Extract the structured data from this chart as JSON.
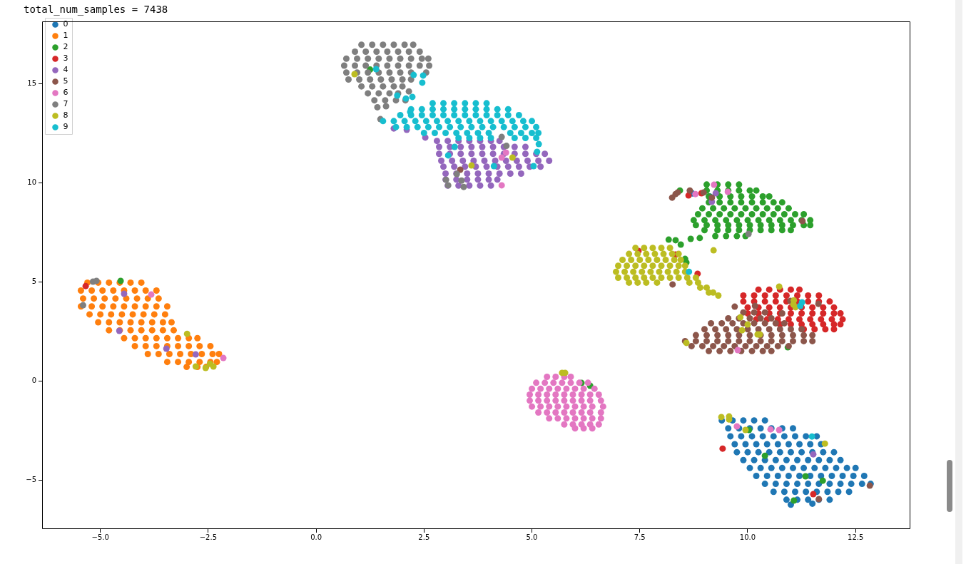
{
  "chart_data": {
    "type": "scatter",
    "title": "total_num_samples = 7438",
    "xlim": [
      -6.35,
      13.77
    ],
    "ylim": [
      -7.48,
      18.13
    ],
    "xticks": [
      {
        "value": -5,
        "label": "−5.0"
      },
      {
        "value": -2.5,
        "label": "−2.5"
      },
      {
        "value": 0,
        "label": "0.0"
      },
      2.5,
      {
        "value": 5,
        "label": "5.0"
      },
      7.5,
      {
        "value": 10,
        "label": "10.0"
      },
      12.5
    ],
    "yticks": [
      {
        "value": -5,
        "label": "−5"
      },
      0,
      5,
      10,
      15
    ],
    "grid": false,
    "legend": "top left",
    "marker": "circle",
    "series": [
      {
        "name": "0",
        "color": "#1f77b4",
        "x": [
          9.4,
          9.65,
          9.9,
          10.15,
          10.4,
          9.55,
          9.8,
          10.05,
          10.3,
          10.55,
          10.8,
          11.05,
          9.6,
          9.85,
          10.1,
          10.35,
          10.6,
          10.85,
          11.1,
          11.35,
          11.6,
          9.7,
          9.95,
          10.2,
          10.45,
          10.7,
          10.95,
          11.2,
          11.45,
          11.7,
          9.75,
          10,
          10.25,
          10.5,
          10.75,
          11,
          11.25,
          11.5,
          11.75,
          12,
          9.9,
          10.15,
          10.4,
          10.65,
          10.9,
          11.15,
          11.4,
          11.65,
          11.9,
          12.15,
          10.05,
          10.3,
          10.55,
          10.8,
          11.05,
          11.3,
          11.55,
          11.8,
          12.05,
          12.3,
          12.5,
          10.2,
          10.45,
          10.7,
          10.95,
          11.2,
          11.45,
          11.7,
          11.95,
          12.2,
          12.45,
          12.7,
          10.4,
          10.65,
          10.9,
          11.15,
          11.4,
          11.65,
          11.9,
          12.15,
          12.4,
          12.65,
          12.85,
          10.6,
          10.85,
          11.1,
          11.35,
          11.6,
          11.85,
          12.1,
          12.35,
          10.9,
          11.15,
          11.4,
          11.65,
          11.9,
          11,
          11.5,
          8.72,
          9.12
        ],
        "values": [
          -2,
          -2,
          -2,
          -2,
          -2,
          -2.4,
          -2.4,
          -2.4,
          -2.4,
          -2.4,
          -2.4,
          -2.4,
          -2.8,
          -2.8,
          -2.8,
          -2.8,
          -2.8,
          -2.8,
          -2.8,
          -2.8,
          -2.8,
          -3.2,
          -3.2,
          -3.2,
          -3.2,
          -3.2,
          -3.2,
          -3.2,
          -3.2,
          -3.2,
          -3.6,
          -3.6,
          -3.6,
          -3.6,
          -3.6,
          -3.6,
          -3.6,
          -3.6,
          -3.6,
          -3.6,
          -4,
          -4,
          -4,
          -4,
          -4,
          -4,
          -4,
          -4,
          -4,
          -4,
          -4.4,
          -4.4,
          -4.4,
          -4.4,
          -4.4,
          -4.4,
          -4.4,
          -4.4,
          -4.4,
          -4.4,
          -4.4,
          -4.8,
          -4.8,
          -4.8,
          -4.8,
          -4.8,
          -4.8,
          -4.8,
          -4.8,
          -4.8,
          -4.8,
          -4.8,
          -5.2,
          -5.2,
          -5.2,
          -5.2,
          -5.2,
          -5.2,
          -5.2,
          -5.2,
          -5.2,
          -5.2,
          -5.2,
          -5.6,
          -5.6,
          -5.6,
          -5.6,
          -5.6,
          -5.6,
          -5.6,
          -5.6,
          -6,
          -6,
          -6,
          -6,
          -6,
          -6.25,
          -6.2,
          9.45,
          9.3
        ]
      },
      {
        "name": "1",
        "color": "#ff7f0e",
        "x": [
          -5.3,
          -5.05,
          -4.8,
          -4.55,
          -4.3,
          -4.05,
          -5.45,
          -5.2,
          -4.95,
          -4.7,
          -4.45,
          -4.2,
          -3.95,
          -3.7,
          -5.4,
          -5.15,
          -4.9,
          -4.65,
          -4.4,
          -4.15,
          -3.9,
          -3.65,
          -5.45,
          -5.2,
          -4.95,
          -4.7,
          -4.45,
          -4.2,
          -3.95,
          -3.7,
          -3.45,
          -5.25,
          -5,
          -4.75,
          -4.5,
          -4.25,
          -4,
          -3.75,
          -3.5,
          -5.05,
          -4.8,
          -4.55,
          -4.3,
          -4.05,
          -3.8,
          -3.55,
          -3.35,
          -4.8,
          -4.55,
          -4.3,
          -4.05,
          -3.8,
          -3.55,
          -3.3,
          -4.45,
          -4.2,
          -3.95,
          -3.7,
          -3.45,
          -3.2,
          -2.95,
          -2.75,
          -4.2,
          -3.95,
          -3.7,
          -3.45,
          -3.2,
          -2.95,
          -2.7,
          -2.45,
          -3.9,
          -3.65,
          -3.4,
          -3.15,
          -2.9,
          -2.65,
          -2.4,
          -2.25,
          -3.45,
          -3.2,
          -2.95,
          -2.7,
          -2.45,
          -2.3,
          -3,
          -2.75,
          -2.55
        ],
        "values": [
          4.95,
          4.95,
          4.95,
          4.95,
          4.95,
          4.95,
          4.55,
          4.55,
          4.55,
          4.55,
          4.55,
          4.55,
          4.55,
          4.55,
          4.15,
          4.15,
          4.15,
          4.15,
          4.15,
          4.15,
          4.15,
          4.15,
          3.75,
          3.75,
          3.75,
          3.75,
          3.75,
          3.75,
          3.75,
          3.75,
          3.75,
          3.35,
          3.35,
          3.35,
          3.35,
          3.35,
          3.35,
          3.35,
          3.35,
          2.95,
          2.95,
          2.95,
          2.95,
          2.95,
          2.95,
          2.95,
          2.95,
          2.55,
          2.55,
          2.55,
          2.55,
          2.55,
          2.55,
          2.55,
          2.15,
          2.15,
          2.15,
          2.15,
          2.15,
          2.15,
          2.15,
          2.15,
          1.75,
          1.75,
          1.75,
          1.75,
          1.75,
          1.75,
          1.75,
          1.75,
          1.35,
          1.35,
          1.35,
          1.35,
          1.35,
          1.35,
          1.35,
          1.35,
          0.95,
          0.95,
          0.95,
          0.95,
          0.95,
          0.95,
          0.7,
          0.7,
          0.7
        ]
      },
      {
        "name": "2",
        "color": "#2ca02c",
        "x": [
          9.05,
          9.3,
          9.55,
          9.8,
          9.05,
          9.3,
          9.55,
          9.8,
          10.05,
          10.2,
          9.1,
          9.35,
          9.6,
          9.85,
          10.1,
          10.35,
          10.5,
          9.1,
          9.35,
          9.6,
          9.85,
          10.1,
          10.35,
          10.6,
          10.8,
          8.95,
          9.2,
          9.45,
          9.7,
          9.95,
          10.2,
          10.45,
          10.7,
          10.95,
          8.85,
          9.1,
          9.35,
          9.6,
          9.85,
          10.1,
          10.35,
          10.6,
          10.85,
          11.1,
          11.3,
          8.75,
          9,
          9.25,
          9.5,
          9.75,
          10,
          10.25,
          10.5,
          10.75,
          11,
          11.25,
          11.45,
          8.8,
          9.05,
          9.3,
          9.55,
          9.8,
          10.05,
          10.3,
          10.55,
          10.8,
          11.05,
          11.3,
          11.45,
          9,
          9.3,
          9.55,
          9.8,
          10.05,
          10.3,
          10.55,
          10.8,
          11,
          9.25,
          9.5,
          9.75,
          9.95,
          8.17,
          8.33,
          8.45,
          8.68,
          8.89,
          8.43,
          1.25,
          -4.53,
          8.55,
          8.58,
          6.15,
          6.35,
          10.93,
          10.03,
          10.4,
          11.34,
          11.74,
          11.07
        ],
        "values": [
          9.9,
          9.9,
          9.9,
          9.9,
          9.6,
          9.6,
          9.6,
          9.6,
          9.6,
          9.6,
          9.3,
          9.3,
          9.3,
          9.3,
          9.3,
          9.3,
          9.3,
          9,
          9,
          9,
          9,
          9,
          9,
          9,
          9,
          8.7,
          8.7,
          8.7,
          8.7,
          8.7,
          8.7,
          8.7,
          8.7,
          8.7,
          8.4,
          8.4,
          8.4,
          8.4,
          8.4,
          8.4,
          8.4,
          8.4,
          8.4,
          8.4,
          8.4,
          8.1,
          8.1,
          8.1,
          8.1,
          8.1,
          8.1,
          8.1,
          8.1,
          8.1,
          8.1,
          8.1,
          8.1,
          7.85,
          7.85,
          7.85,
          7.85,
          7.85,
          7.85,
          7.85,
          7.85,
          7.85,
          7.85,
          7.85,
          7.85,
          7.6,
          7.6,
          7.6,
          7.6,
          7.6,
          7.6,
          7.6,
          7.6,
          7.6,
          7.3,
          7.3,
          7.3,
          7.3,
          7.12,
          7.09,
          6.87,
          7.16,
          7.2,
          9.6,
          15.7,
          5.04,
          6.15,
          5.97,
          -0.11,
          -0.25,
          1.69,
          -2.48,
          -3.78,
          -4.82,
          -5.04,
          -6.04
        ]
      },
      {
        "name": "3",
        "color": "#d62728",
        "x": [
          10.25,
          10.5,
          10.75,
          11,
          11.2,
          9.9,
          10.15,
          10.4,
          10.65,
          10.9,
          11.15,
          11.4,
          11.65,
          9.9,
          10.15,
          10.4,
          10.65,
          10.9,
          11.15,
          11.4,
          11.65,
          11.9,
          10,
          10.25,
          10.5,
          10.75,
          11,
          11.25,
          11.5,
          11.75,
          12,
          10,
          10.25,
          10.5,
          10.75,
          11,
          11.25,
          11.5,
          11.75,
          12,
          12.15,
          10.2,
          10.45,
          10.7,
          10.95,
          11.2,
          11.45,
          11.7,
          11.95,
          12.2,
          10.75,
          11,
          11.25,
          11.5,
          11.75,
          12,
          12.15,
          11.3,
          11.55,
          11.8,
          12,
          -5.34,
          8.63,
          8.93,
          7.47,
          8.33,
          8.84,
          9.42,
          11.52
        ],
        "values": [
          4.6,
          4.6,
          4.6,
          4.6,
          4.6,
          4.3,
          4.3,
          4.3,
          4.3,
          4.3,
          4.3,
          4.3,
          4.3,
          4,
          4,
          4,
          4,
          4,
          4,
          4,
          4,
          4,
          3.7,
          3.7,
          3.7,
          3.7,
          3.7,
          3.7,
          3.7,
          3.7,
          3.7,
          3.4,
          3.4,
          3.4,
          3.4,
          3.4,
          3.4,
          3.4,
          3.4,
          3.4,
          3.4,
          3.1,
          3.1,
          3.1,
          3.1,
          3.1,
          3.1,
          3.1,
          3.1,
          3.1,
          2.85,
          2.85,
          2.85,
          2.85,
          2.85,
          2.85,
          2.85,
          2.6,
          2.6,
          2.6,
          2.6,
          4.78,
          9.35,
          9.46,
          6.55,
          6.37,
          5.4,
          -3.42,
          -5.72
        ]
      },
      {
        "name": "4",
        "color": "#9467bd",
        "x": [
          2.8,
          3.05,
          3.3,
          3.55,
          3.8,
          4.05,
          4.25,
          2.85,
          3.1,
          3.35,
          3.6,
          3.85,
          4.1,
          4.35,
          4.6,
          4.85,
          2.85,
          3.1,
          3.35,
          3.6,
          3.85,
          4.1,
          4.35,
          4.6,
          4.85,
          5.1,
          5.3,
          2.9,
          3.15,
          3.4,
          3.65,
          3.9,
          4.15,
          4.4,
          4.65,
          4.9,
          5.15,
          5.4,
          2.95,
          3.2,
          3.45,
          3.7,
          3.95,
          4.2,
          4.45,
          4.7,
          4.95,
          5.2,
          3,
          3.25,
          3.5,
          3.75,
          4,
          4.25,
          4.5,
          4.75,
          3,
          3.25,
          3.5,
          3.75,
          4,
          4.2,
          3.05,
          3.3,
          3.55,
          3.8,
          4.05,
          1.8,
          2.1,
          2.53,
          -4.45,
          -4.56,
          -3.47,
          -2.79,
          9.26,
          9.17,
          11.52
        ],
        "values": [
          12.1,
          12.1,
          12.1,
          12.1,
          12.1,
          12.1,
          12.1,
          11.8,
          11.8,
          11.8,
          11.8,
          11.8,
          11.8,
          11.8,
          11.8,
          11.8,
          11.45,
          11.45,
          11.45,
          11.45,
          11.45,
          11.45,
          11.45,
          11.45,
          11.45,
          11.45,
          11.45,
          11.1,
          11.1,
          11.1,
          11.1,
          11.1,
          11.1,
          11.1,
          11.1,
          11.1,
          11.1,
          11.1,
          10.8,
          10.8,
          10.8,
          10.8,
          10.8,
          10.8,
          10.8,
          10.8,
          10.8,
          10.8,
          10.45,
          10.45,
          10.45,
          10.45,
          10.45,
          10.45,
          10.45,
          10.45,
          10.15,
          10.15,
          10.15,
          10.15,
          10.15,
          10.15,
          9.85,
          9.85,
          9.85,
          9.85,
          9.85,
          12.73,
          12.66,
          12.27,
          4.39,
          2.52,
          1.62,
          1.33,
          9.46,
          9.03,
          -3.71
        ]
      },
      {
        "name": "5",
        "color": "#8c564b",
        "x": [
          9.9,
          10.15,
          10.4,
          9.55,
          9.8,
          10.05,
          10.3,
          10.55,
          9.15,
          9.4,
          9.65,
          9.9,
          10.15,
          10.4,
          10.65,
          10.85,
          9,
          9.25,
          9.5,
          9.75,
          10,
          10.25,
          10.5,
          10.75,
          11,
          11.25,
          8.8,
          9.05,
          9.3,
          9.55,
          9.8,
          10.05,
          10.3,
          10.55,
          10.8,
          11.05,
          11.3,
          11.5,
          8.55,
          8.8,
          9.05,
          9.3,
          9.55,
          9.8,
          10.05,
          10.3,
          10.55,
          10.8,
          11.05,
          11.3,
          11.5,
          8.7,
          8.95,
          9.2,
          9.45,
          9.7,
          9.95,
          10.2,
          10.45,
          10.7,
          10.95,
          9.1,
          9.35,
          9.6,
          9.85,
          10.1,
          10.35,
          10.55,
          9.7,
          10.17,
          10.99,
          11.64,
          10.8,
          8.25,
          8.33,
          8.38,
          8.66,
          8.98,
          9.17,
          11.27,
          8.26,
          3.34,
          11.65,
          12.83
        ],
        "values": [
          3.45,
          3.45,
          3.45,
          3.15,
          3.15,
          3.15,
          3.15,
          3.15,
          2.9,
          2.9,
          2.9,
          2.9,
          2.9,
          2.9,
          2.9,
          2.9,
          2.6,
          2.6,
          2.6,
          2.6,
          2.6,
          2.6,
          2.6,
          2.6,
          2.6,
          2.6,
          2.3,
          2.3,
          2.3,
          2.3,
          2.3,
          2.3,
          2.3,
          2.3,
          2.3,
          2.3,
          2.3,
          2.3,
          2,
          2,
          2,
          2,
          2,
          2,
          2,
          2,
          2,
          2,
          2,
          2,
          2,
          1.75,
          1.75,
          1.75,
          1.75,
          1.75,
          1.75,
          1.75,
          1.75,
          1.75,
          1.75,
          1.5,
          1.5,
          1.5,
          1.5,
          1.5,
          1.5,
          1.5,
          3.74,
          3.78,
          4.03,
          3.88,
          3.4,
          9.24,
          9.42,
          9.5,
          9.6,
          9.5,
          9.24,
          8.06,
          4.86,
          10.65,
          -5.97,
          -5.29
        ]
      },
      {
        "name": "6",
        "color": "#e377c2",
        "x": [
          5.35,
          5.55,
          5.75,
          5.9,
          5.1,
          5.3,
          5.5,
          5.7,
          5.9,
          6.1,
          6.3,
          5,
          5.2,
          5.4,
          5.6,
          5.8,
          6,
          6.2,
          6.45,
          4.95,
          5.15,
          5.35,
          5.55,
          5.75,
          5.95,
          6.15,
          6.35,
          6.55,
          4.95,
          5.15,
          5.35,
          5.55,
          5.75,
          5.95,
          6.15,
          6.35,
          6.6,
          5,
          5.2,
          5.4,
          5.6,
          5.8,
          6,
          6.2,
          6.4,
          6.65,
          5.15,
          5.35,
          5.55,
          5.75,
          5.95,
          6.15,
          6.35,
          6.6,
          5.4,
          5.6,
          5.8,
          6,
          6.2,
          6.4,
          6.6,
          5.75,
          5.95,
          6.15,
          6.35,
          6.55,
          6,
          6.2,
          6.4,
          -3.82,
          -2.15,
          4.4,
          4.3,
          4.3,
          8.79,
          9.22,
          9.54,
          9.77,
          9.75,
          10.53,
          10.73
        ],
        "values": [
          0.2,
          0.2,
          0.2,
          0.2,
          -0.1,
          -0.1,
          -0.1,
          -0.1,
          -0.1,
          -0.1,
          -0.1,
          -0.4,
          -0.4,
          -0.4,
          -0.4,
          -0.4,
          -0.4,
          -0.4,
          -0.4,
          -0.7,
          -0.7,
          -0.7,
          -0.7,
          -0.7,
          -0.7,
          -0.7,
          -0.7,
          -0.7,
          -1,
          -1,
          -1,
          -1,
          -1,
          -1,
          -1,
          -1,
          -1,
          -1.3,
          -1.3,
          -1.3,
          -1.3,
          -1.3,
          -1.3,
          -1.3,
          -1.3,
          -1.3,
          -1.6,
          -1.6,
          -1.6,
          -1.6,
          -1.6,
          -1.6,
          -1.6,
          -1.6,
          -1.9,
          -1.9,
          -1.9,
          -1.9,
          -1.9,
          -1.9,
          -1.9,
          -2.2,
          -2.2,
          -2.2,
          -2.2,
          -2.2,
          -2.4,
          -2.4,
          -2.4,
          4.35,
          1.15,
          11.51,
          11.26,
          9.86,
          9.42,
          9.89,
          9.53,
          1.55,
          -2.3,
          -2.45,
          -2.48
        ]
      },
      {
        "name": "7",
        "color": "#7f7f7f",
        "x": [
          1.05,
          1.3,
          1.55,
          1.8,
          2.05,
          2.25,
          0.9,
          1.15,
          1.4,
          1.65,
          1.9,
          2.15,
          2.4,
          0.7,
          0.95,
          1.2,
          1.45,
          1.7,
          1.95,
          2.2,
          2.45,
          2.6,
          0.65,
          0.9,
          1.15,
          1.4,
          1.65,
          1.9,
          2.15,
          2.4,
          2.62,
          0.7,
          0.95,
          1.2,
          1.45,
          1.7,
          1.95,
          2.2,
          2.55,
          0.75,
          1,
          1.25,
          1.5,
          1.75,
          2,
          2.2,
          1.05,
          1.3,
          1.55,
          1.8,
          2,
          1.2,
          1.45,
          1.7,
          1.9,
          1.35,
          1.6,
          1.85,
          2.07,
          1.42,
          1.62,
          2.15,
          1.49,
          4.3,
          4.41,
          3.26,
          3.37,
          3.01,
          3.06,
          3.42,
          -5.17,
          -5.09,
          -5.4,
          10.02
        ],
        "values": [
          16.95,
          16.95,
          16.95,
          16.95,
          16.95,
          16.95,
          16.6,
          16.6,
          16.6,
          16.6,
          16.6,
          16.6,
          16.6,
          16.25,
          16.25,
          16.25,
          16.25,
          16.25,
          16.25,
          16.25,
          16.25,
          16.25,
          15.9,
          15.9,
          15.9,
          15.9,
          15.9,
          15.9,
          15.9,
          15.9,
          15.9,
          15.55,
          15.55,
          15.55,
          15.55,
          15.55,
          15.55,
          15.55,
          15.55,
          15.2,
          15.2,
          15.2,
          15.2,
          15.2,
          15.2,
          15.2,
          14.85,
          14.85,
          14.85,
          14.85,
          14.85,
          14.5,
          14.5,
          14.5,
          14.5,
          14.15,
          14.15,
          14.15,
          14.15,
          13.8,
          13.85,
          14.6,
          13.2,
          12.3,
          11.85,
          10.43,
          10.1,
          10.14,
          9.86,
          9.78,
          5,
          5.04,
          3.81,
          7.41
        ]
      },
      {
        "name": "8",
        "color": "#bcbd22",
        "x": [
          7.4,
          7.6,
          7.8,
          8,
          8.2,
          7.25,
          7.45,
          7.65,
          7.85,
          8.05,
          8.25,
          8.4,
          7.1,
          7.3,
          7.5,
          7.7,
          7.9,
          8.1,
          8.3,
          8.45,
          7,
          7.2,
          7.4,
          7.6,
          7.8,
          8,
          8.2,
          8.4,
          8.55,
          6.95,
          7.15,
          7.35,
          7.55,
          7.75,
          7.95,
          8.15,
          8.35,
          8.55,
          7,
          7.2,
          7.4,
          7.6,
          7.8,
          8,
          8.2,
          8.4,
          8.6,
          8.8,
          7.25,
          7.45,
          7.65,
          7.9,
          8.65,
          8.85,
          8.9,
          9.05,
          9.1,
          9.2,
          9.32,
          9.21,
          5.7,
          5.77,
          0.89,
          3.6,
          4.55,
          -2.99,
          -2.79,
          -2.56,
          -2.46,
          -2.38,
          10.73,
          11.07,
          11.11,
          11.06,
          9.83,
          10,
          9.87,
          10.23,
          10.28,
          8.58,
          9.39,
          9.57,
          9.57,
          9.95,
          11.79
        ],
        "values": [
          6.7,
          6.7,
          6.7,
          6.7,
          6.7,
          6.4,
          6.4,
          6.4,
          6.4,
          6.4,
          6.4,
          6.4,
          6.1,
          6.1,
          6.1,
          6.1,
          6.1,
          6.1,
          6.1,
          6.1,
          5.8,
          5.8,
          5.8,
          5.8,
          5.8,
          5.8,
          5.8,
          5.8,
          5.8,
          5.5,
          5.5,
          5.5,
          5.5,
          5.5,
          5.5,
          5.5,
          5.5,
          5.5,
          5.2,
          5.2,
          5.2,
          5.2,
          5.2,
          5.2,
          5.2,
          5.2,
          5.2,
          5.2,
          4.95,
          4.95,
          4.95,
          4.95,
          4.95,
          4.95,
          4.7,
          4.7,
          4.45,
          4.45,
          4.3,
          6.58,
          0.4,
          0.4,
          15.47,
          10.86,
          11.26,
          2.37,
          0.72,
          0.65,
          0.86,
          0.72,
          4.75,
          4.06,
          3.71,
          3.85,
          3.2,
          2.84,
          2.55,
          2.34,
          2.34,
          1.91,
          -1.83,
          -1.8,
          -1.95,
          -2.48,
          -3.17
        ]
      },
      {
        "name": "9",
        "color": "#17becf",
        "x": [
          2.7,
          2.95,
          3.2,
          3.45,
          3.7,
          3.95,
          2.2,
          2.45,
          2.7,
          2.95,
          3.2,
          3.45,
          3.7,
          3.95,
          4.2,
          4.45,
          1.95,
          2.2,
          2.45,
          2.7,
          2.95,
          3.2,
          3.45,
          3.7,
          3.95,
          4.2,
          4.45,
          4.7,
          1.55,
          1.8,
          2.05,
          2.3,
          2.55,
          2.8,
          3.05,
          3.3,
          3.55,
          3.8,
          4.05,
          4.3,
          4.55,
          4.8,
          5,
          1.85,
          2.1,
          2.35,
          2.6,
          2.85,
          3.1,
          3.35,
          3.6,
          3.85,
          4.1,
          4.35,
          4.6,
          4.85,
          5.1,
          2.5,
          2.75,
          3,
          3.25,
          3.5,
          3.75,
          4,
          4.5,
          4.75,
          5,
          5.15,
          3.3,
          3.55,
          3.8,
          4.05,
          4.6,
          4.85,
          5.1,
          1.88,
          2.08,
          2.23,
          2.18,
          5.16,
          5.12,
          5.04,
          1.39,
          2.26,
          2.48,
          2.46,
          3.21,
          3.06,
          4.12,
          8.64,
          11.26,
          11.22,
          11.49
        ],
        "values": [
          14,
          14,
          14,
          14,
          14,
          14,
          13.7,
          13.7,
          13.7,
          13.7,
          13.7,
          13.7,
          13.7,
          13.7,
          13.7,
          13.7,
          13.4,
          13.4,
          13.4,
          13.4,
          13.4,
          13.4,
          13.4,
          13.4,
          13.4,
          13.4,
          13.4,
          13.4,
          13.1,
          13.1,
          13.1,
          13.1,
          13.1,
          13.1,
          13.1,
          13.1,
          13.1,
          13.1,
          13.1,
          13.1,
          13.1,
          13.1,
          13.1,
          12.8,
          12.8,
          12.8,
          12.8,
          12.8,
          12.8,
          12.8,
          12.8,
          12.8,
          12.8,
          12.8,
          12.8,
          12.8,
          12.8,
          12.5,
          12.5,
          12.5,
          12.5,
          12.5,
          12.5,
          12.5,
          12.5,
          12.5,
          12.5,
          12.5,
          12.25,
          12.25,
          12.25,
          12.25,
          12.25,
          12.25,
          12.25,
          14.39,
          14.24,
          14.32,
          13.56,
          11.94,
          11.55,
          10.83,
          15.72,
          15.43,
          15.4,
          15.04,
          11.8,
          11.37,
          10.83,
          5.5,
          3.96,
          3.78,
          -2.81
        ]
      }
    ]
  }
}
